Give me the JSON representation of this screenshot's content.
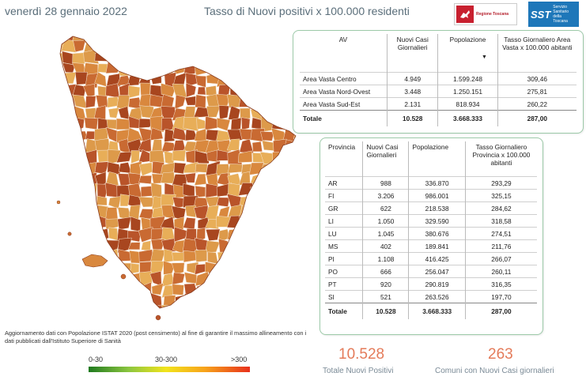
{
  "header": {
    "date": "venerdì 28 gennaio 2022",
    "title": "Tasso di Nuovi positivi x 100.000 residenti",
    "logo_regione_text": "Regione Toscana",
    "logo_sst_text": "SST",
    "logo_sst_subtext": "Servizio Sanitario della Toscana"
  },
  "area_vasta_table": {
    "headers": {
      "av": "AV",
      "nuovi": "Nuovi Casi Giornalieri",
      "pop": "Popolazione",
      "tasso": "Tasso Giornaliero Area Vasta x 100.000 abitanti"
    },
    "sort_indicator": "▼",
    "rows": [
      {
        "name": "Area Vasta Centro",
        "nuovi": "4.949",
        "pop": "1.599.248",
        "tasso": "309,46"
      },
      {
        "name": "Area Vasta Nord-Ovest",
        "nuovi": "3.448",
        "pop": "1.250.151",
        "tasso": "275,81"
      },
      {
        "name": "Area Vasta Sud-Est",
        "nuovi": "2.131",
        "pop": "818.934",
        "tasso": "260,22"
      }
    ],
    "total": {
      "name": "Totale",
      "nuovi": "10.528",
      "pop": "3.668.333",
      "tasso": "287,00"
    }
  },
  "provincia_table": {
    "headers": {
      "prov": "Provincia",
      "nuovi": "Nuovi Casi Giornalieri",
      "pop": "Popolazione",
      "tasso": "Tasso Giornaliero Provincia x 100.000 abitanti"
    },
    "rows": [
      {
        "name": "AR",
        "nuovi": "988",
        "pop": "336.870",
        "tasso": "293,29"
      },
      {
        "name": "FI",
        "nuovi": "3.206",
        "pop": "986.001",
        "tasso": "325,15"
      },
      {
        "name": "GR",
        "nuovi": "622",
        "pop": "218.538",
        "tasso": "284,62"
      },
      {
        "name": "LI",
        "nuovi": "1.050",
        "pop": "329.590",
        "tasso": "318,58"
      },
      {
        "name": "LU",
        "nuovi": "1.045",
        "pop": "380.676",
        "tasso": "274,51"
      },
      {
        "name": "MS",
        "nuovi": "402",
        "pop": "189.841",
        "tasso": "211,76"
      },
      {
        "name": "PI",
        "nuovi": "1.108",
        "pop": "416.425",
        "tasso": "266,07"
      },
      {
        "name": "PO",
        "nuovi": "666",
        "pop": "256.047",
        "tasso": "260,11"
      },
      {
        "name": "PT",
        "nuovi": "920",
        "pop": "290.819",
        "tasso": "316,35"
      },
      {
        "name": "SI",
        "nuovi": "521",
        "pop": "263.526",
        "tasso": "197,70"
      }
    ],
    "total": {
      "name": "Totale",
      "nuovi": "10.528",
      "pop": "3.668.333",
      "tasso": "287,00"
    }
  },
  "footnote": "Aggiornamento dati con Popolazione ISTAT 2020 (post censimento) al fine di garantire il massimo allineamento con i dati pubblicati dall'Istituto Superiore di Sanità",
  "legend": {
    "low": "0-30",
    "mid": "30-300",
    "high": ">300"
  },
  "kpis": {
    "totale_value": "10.528",
    "totale_label": "Totale Nuovi Positivi",
    "comuni_value": "263",
    "comuni_label": "Comuni con Nuovi Casi giornalieri"
  },
  "colors": {
    "header_text": "#5a6e7a",
    "panel_border": "#9cc9a8",
    "kpi_value": "#e47b5a",
    "map_dark": "#b9542a",
    "map_mid": "#d9883e",
    "map_light": "#e8ae58"
  }
}
